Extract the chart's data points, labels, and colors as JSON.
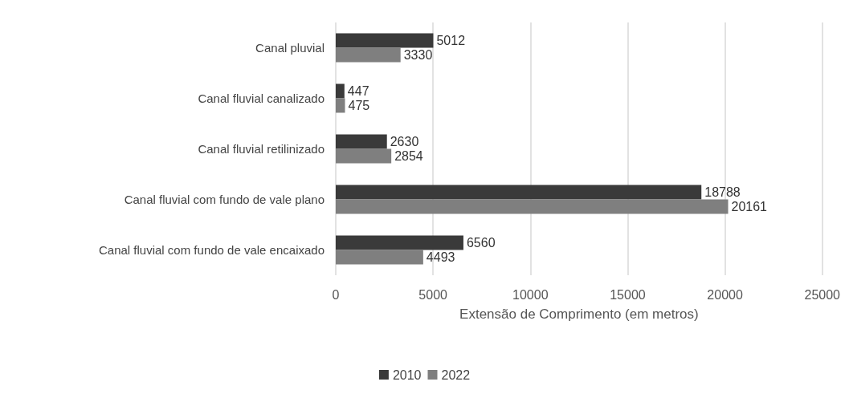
{
  "chart_data": {
    "type": "bar",
    "orientation": "horizontal",
    "xlabel": "Extensão de Comprimento (em metros)",
    "categories": [
      "Canal pluvial",
      "Canal fluvial canalizado",
      "Canal fluvial retilinizado",
      "Canal fluvial com fundo de vale plano",
      "Canal fluvial com fundo de vale encaixado"
    ],
    "series": [
      {
        "name": "2010",
        "color": "#3a3a3a",
        "values": [
          5012,
          447,
          2630,
          18788,
          6560
        ]
      },
      {
        "name": "2022",
        "color": "#7f7f7f",
        "values": [
          3330,
          475,
          2854,
          20161,
          4493
        ]
      }
    ],
    "xlim": [
      0,
      25000
    ],
    "xticks": [
      0,
      5000,
      10000,
      15000,
      20000,
      25000
    ],
    "grid": "x",
    "legend": "bottom",
    "data_labels": true
  }
}
